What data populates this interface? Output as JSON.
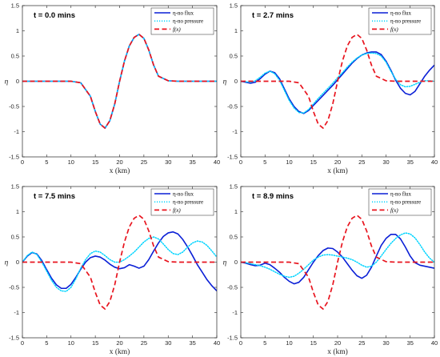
{
  "chart_data": [
    {
      "type": "line",
      "title": "t = 0.0 mins",
      "xlabel": "x (km)",
      "ylabel": "η",
      "xlim": [
        0,
        40
      ],
      "ylim": [
        -1.5,
        1.5
      ],
      "xticks": [
        "0",
        "5",
        "10",
        "15",
        "20",
        "25",
        "30",
        "35",
        "40"
      ],
      "yticks": [
        "1.5",
        "1",
        "0.5",
        "0",
        "-0.5",
        "-1",
        "-1.5"
      ],
      "legend_position": "top-right",
      "series": [
        {
          "name": "η-no flux",
          "color": "#0a1fd6",
          "style": "solid",
          "x": [
            0,
            5,
            10,
            12,
            14,
            15,
            16,
            17,
            18,
            19,
            20,
            21,
            22,
            23,
            24,
            25,
            26,
            27,
            28,
            30,
            32,
            35,
            40
          ],
          "y": [
            0,
            0,
            0,
            -0.03,
            -0.3,
            -0.6,
            -0.85,
            -0.93,
            -0.78,
            -0.45,
            0,
            0.4,
            0.7,
            0.87,
            0.93,
            0.85,
            0.62,
            0.32,
            0.1,
            0.01,
            0,
            0,
            0
          ]
        },
        {
          "name": "η-no pressure",
          "color": "#00d4ff",
          "style": "dotted",
          "x": [
            0,
            5,
            10,
            12,
            14,
            15,
            16,
            17,
            18,
            19,
            20,
            21,
            22,
            23,
            24,
            25,
            26,
            27,
            28,
            30,
            32,
            35,
            40
          ],
          "y": [
            0,
            0,
            0,
            -0.03,
            -0.3,
            -0.6,
            -0.85,
            -0.93,
            -0.78,
            -0.45,
            0,
            0.4,
            0.7,
            0.87,
            0.93,
            0.85,
            0.62,
            0.32,
            0.1,
            0.01,
            0,
            0,
            0
          ]
        },
        {
          "name": "f(x)",
          "color": "#e8141e",
          "style": "dashed",
          "x": [
            0,
            5,
            10,
            12,
            14,
            15,
            16,
            17,
            18,
            19,
            20,
            21,
            22,
            23,
            24,
            25,
            26,
            27,
            28,
            30,
            32,
            35,
            40
          ],
          "y": [
            0,
            0,
            0,
            -0.03,
            -0.3,
            -0.6,
            -0.85,
            -0.93,
            -0.78,
            -0.45,
            0,
            0.4,
            0.7,
            0.87,
            0.93,
            0.85,
            0.62,
            0.32,
            0.1,
            0.01,
            0,
            0,
            0
          ]
        }
      ]
    },
    {
      "type": "line",
      "title": "t = 2.7 mins",
      "xlabel": "x (km)",
      "ylabel": "η",
      "xlim": [
        0,
        40
      ],
      "ylim": [
        -1.5,
        1.5
      ],
      "xticks": [
        "0",
        "5",
        "10",
        "15",
        "20",
        "25",
        "30",
        "35",
        "40"
      ],
      "yticks": [
        "1.5",
        "1",
        "0.5",
        "0",
        "-0.5",
        "-1",
        "-1.5"
      ],
      "legend_position": "top-right",
      "series": [
        {
          "name": "η-no flux",
          "color": "#0a1fd6",
          "style": "solid",
          "x": [
            0,
            1,
            2,
            3,
            4,
            5,
            6,
            7,
            8,
            9,
            10,
            11,
            12,
            13,
            14,
            15,
            16,
            17,
            18,
            19,
            20,
            21,
            22,
            23,
            24,
            25,
            26,
            27,
            28,
            29,
            30,
            31,
            32,
            33,
            34,
            35,
            36,
            37,
            38,
            39,
            40
          ],
          "y": [
            0,
            -0.02,
            -0.04,
            -0.02,
            0.05,
            0.14,
            0.2,
            0.17,
            0.05,
            -0.15,
            -0.35,
            -0.5,
            -0.6,
            -0.64,
            -0.58,
            -0.48,
            -0.38,
            -0.28,
            -0.18,
            -0.08,
            0.03,
            0.14,
            0.25,
            0.36,
            0.45,
            0.52,
            0.56,
            0.58,
            0.58,
            0.53,
            0.4,
            0.22,
            0.02,
            -0.14,
            -0.24,
            -0.27,
            -0.2,
            -0.05,
            0.1,
            0.22,
            0.32
          ]
        },
        {
          "name": "η-no pressure",
          "color": "#00d4ff",
          "style": "dotted",
          "x": [
            0,
            1,
            2,
            3,
            4,
            5,
            6,
            7,
            8,
            9,
            10,
            11,
            12,
            13,
            14,
            15,
            16,
            17,
            18,
            19,
            20,
            21,
            22,
            23,
            24,
            25,
            26,
            27,
            28,
            29,
            30,
            31,
            32,
            33,
            34,
            35,
            36,
            37,
            38,
            39,
            40
          ],
          "y": [
            0,
            -0.01,
            -0.02,
            0.01,
            0.08,
            0.16,
            0.2,
            0.15,
            0.02,
            -0.18,
            -0.38,
            -0.53,
            -0.62,
            -0.63,
            -0.56,
            -0.45,
            -0.34,
            -0.24,
            -0.14,
            -0.04,
            0.07,
            0.17,
            0.28,
            0.38,
            0.46,
            0.52,
            0.55,
            0.56,
            0.55,
            0.5,
            0.38,
            0.2,
            0.04,
            -0.07,
            -0.11,
            -0.1,
            -0.06,
            -0.02,
            0.01,
            0.01,
            0
          ]
        },
        {
          "name": "f(x)",
          "color": "#e8141e",
          "style": "dashed",
          "x": [
            0,
            5,
            10,
            12,
            14,
            15,
            16,
            17,
            18,
            19,
            20,
            21,
            22,
            23,
            24,
            25,
            26,
            27,
            28,
            30,
            32,
            35,
            40
          ],
          "y": [
            0,
            0,
            0,
            -0.03,
            -0.3,
            -0.6,
            -0.85,
            -0.93,
            -0.78,
            -0.45,
            0,
            0.4,
            0.7,
            0.87,
            0.93,
            0.85,
            0.62,
            0.32,
            0.1,
            0.01,
            0,
            0,
            0
          ]
        }
      ]
    },
    {
      "type": "line",
      "title": "t = 7.5 mins",
      "xlabel": "x (km)",
      "ylabel": "η",
      "xlim": [
        0,
        40
      ],
      "ylim": [
        -1.5,
        1.5
      ],
      "xticks": [
        "0",
        "5",
        "10",
        "15",
        "20",
        "25",
        "30",
        "35",
        "40"
      ],
      "yticks": [
        "1.5",
        "1",
        "0.5",
        "0",
        "-0.5",
        "-1",
        "-1.5"
      ],
      "legend_position": "top-right",
      "series": [
        {
          "name": "η-no flux",
          "color": "#0a1fd6",
          "style": "solid",
          "x": [
            0,
            1,
            2,
            3,
            4,
            5,
            6,
            7,
            8,
            9,
            10,
            11,
            12,
            13,
            14,
            15,
            16,
            17,
            18,
            19,
            20,
            21,
            22,
            23,
            24,
            25,
            26,
            27,
            28,
            29,
            30,
            31,
            32,
            33,
            34,
            35,
            36,
            37,
            38,
            39,
            40
          ],
          "y": [
            0,
            0.12,
            0.19,
            0.16,
            0.03,
            -0.15,
            -0.32,
            -0.45,
            -0.52,
            -0.52,
            -0.44,
            -0.3,
            -0.14,
            0,
            0.09,
            0.12,
            0.1,
            0.04,
            -0.04,
            -0.1,
            -0.13,
            -0.11,
            -0.05,
            -0.08,
            -0.12,
            -0.08,
            0.05,
            0.22,
            0.38,
            0.51,
            0.58,
            0.6,
            0.56,
            0.45,
            0.3,
            0.13,
            -0.05,
            -0.2,
            -0.35,
            -0.47,
            -0.57
          ]
        },
        {
          "name": "η-no pressure",
          "color": "#00d4ff",
          "style": "dotted",
          "x": [
            0,
            1,
            2,
            3,
            4,
            5,
            6,
            7,
            8,
            9,
            10,
            11,
            12,
            13,
            14,
            15,
            16,
            17,
            18,
            19,
            20,
            21,
            22,
            23,
            24,
            25,
            26,
            27,
            28,
            29,
            30,
            31,
            32,
            33,
            34,
            35,
            36,
            37,
            38,
            39,
            40
          ],
          "y": [
            0,
            0.13,
            0.2,
            0.15,
            0.0,
            -0.18,
            -0.36,
            -0.5,
            -0.57,
            -0.58,
            -0.5,
            -0.33,
            -0.12,
            0.05,
            0.17,
            0.22,
            0.2,
            0.13,
            0.05,
            0,
            0.0,
            0.05,
            0.12,
            0.2,
            0.3,
            0.4,
            0.47,
            0.5,
            0.46,
            0.36,
            0.25,
            0.17,
            0.15,
            0.2,
            0.3,
            0.38,
            0.42,
            0.4,
            0.33,
            0.22,
            0.1
          ]
        },
        {
          "name": "f(x)",
          "color": "#e8141e",
          "style": "dashed",
          "x": [
            0,
            5,
            10,
            12,
            14,
            15,
            16,
            17,
            18,
            19,
            20,
            21,
            22,
            23,
            24,
            25,
            26,
            27,
            28,
            30,
            32,
            35,
            40
          ],
          "y": [
            0,
            0,
            0,
            -0.03,
            -0.3,
            -0.6,
            -0.85,
            -0.93,
            -0.78,
            -0.45,
            0,
            0.4,
            0.7,
            0.87,
            0.93,
            0.85,
            0.62,
            0.32,
            0.1,
            0.01,
            0,
            0,
            0
          ]
        }
      ]
    },
    {
      "type": "line",
      "title": "t = 8.9 mins",
      "xlabel": "x (km)",
      "ylabel": "η",
      "xlim": [
        0,
        40
      ],
      "ylim": [
        -1.5,
        1.5
      ],
      "xticks": [
        "0",
        "5",
        "10",
        "15",
        "20",
        "25",
        "30",
        "35",
        "40"
      ],
      "yticks": [
        "1.5",
        "1",
        "0.5",
        "0",
        "-0.5",
        "-1",
        "-1.5"
      ],
      "legend_position": "top-right",
      "series": [
        {
          "name": "η-no flux",
          "color": "#0a1fd6",
          "style": "solid",
          "x": [
            0,
            1,
            2,
            3,
            4,
            5,
            6,
            7,
            8,
            9,
            10,
            11,
            12,
            13,
            14,
            15,
            16,
            17,
            18,
            19,
            20,
            21,
            22,
            23,
            24,
            25,
            26,
            27,
            28,
            29,
            30,
            31,
            32,
            33,
            34,
            35,
            36,
            37,
            38,
            39,
            40
          ],
          "y": [
            0,
            -0.02,
            -0.05,
            -0.07,
            -0.06,
            -0.02,
            -0.05,
            -0.12,
            -0.2,
            -0.3,
            -0.38,
            -0.43,
            -0.4,
            -0.3,
            -0.15,
            0,
            0.13,
            0.23,
            0.28,
            0.27,
            0.2,
            0.1,
            -0.03,
            -0.16,
            -0.27,
            -0.32,
            -0.26,
            -0.1,
            0.12,
            0.33,
            0.47,
            0.55,
            0.55,
            0.46,
            0.3,
            0.12,
            -0.01,
            -0.06,
            -0.08,
            -0.1,
            -0.12
          ]
        },
        {
          "name": "η-no pressure",
          "color": "#00d4ff",
          "style": "dotted",
          "x": [
            0,
            1,
            2,
            3,
            4,
            5,
            6,
            7,
            8,
            9,
            10,
            11,
            12,
            13,
            14,
            15,
            16,
            17,
            18,
            19,
            20,
            21,
            22,
            23,
            24,
            25,
            26,
            27,
            28,
            29,
            30,
            31,
            32,
            33,
            34,
            35,
            36,
            37,
            38,
            39,
            40
          ],
          "y": [
            0,
            -0.01,
            -0.03,
            -0.05,
            -0.07,
            -0.1,
            -0.14,
            -0.19,
            -0.24,
            -0.28,
            -0.3,
            -0.28,
            -0.22,
            -0.14,
            -0.05,
            0.04,
            0.1,
            0.14,
            0.15,
            0.14,
            0.12,
            0.1,
            0.08,
            0.05,
            0,
            -0.06,
            -0.1,
            -0.08,
            0.0,
            0.12,
            0.25,
            0.37,
            0.47,
            0.54,
            0.58,
            0.56,
            0.48,
            0.35,
            0.2,
            0.08,
            0
          ]
        },
        {
          "name": "f(x)",
          "color": "#e8141e",
          "style": "dashed",
          "x": [
            0,
            5,
            10,
            12,
            14,
            15,
            16,
            17,
            18,
            19,
            20,
            21,
            22,
            23,
            24,
            25,
            26,
            27,
            28,
            30,
            32,
            35,
            40
          ],
          "y": [
            0,
            0,
            0,
            -0.03,
            -0.3,
            -0.6,
            -0.85,
            -0.93,
            -0.78,
            -0.45,
            0,
            0.4,
            0.7,
            0.87,
            0.93,
            0.85,
            0.62,
            0.32,
            0.1,
            0.01,
            0,
            0,
            0
          ]
        }
      ]
    }
  ]
}
